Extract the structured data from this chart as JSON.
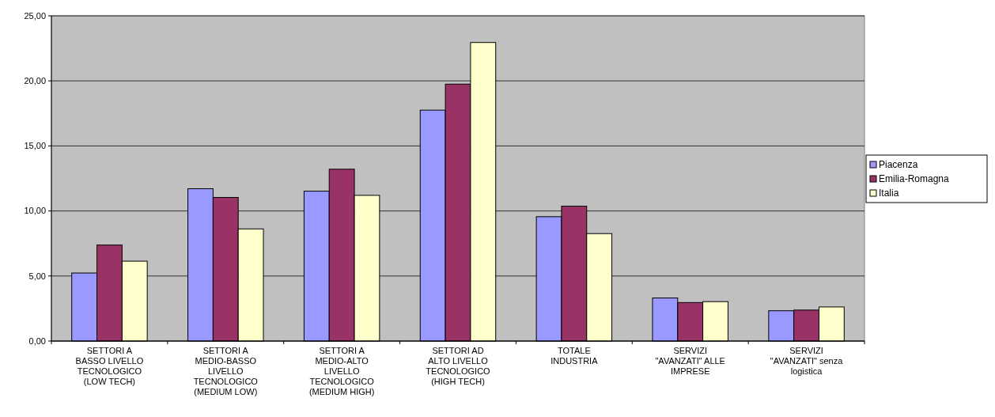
{
  "chart_data": {
    "type": "bar",
    "categories": [
      "SETTORI A BASSO LIVELLO TECNOLOGICO (LOW TECH)",
      "SETTORI A MEDIO-BASSO LIVELLO TECNOLOGICO (MEDIUM LOW)",
      "SETTORI A MEDIO-ALTO LIVELLO TECNOLOGICO (MEDIUM HIGH)",
      "SETTORI AD ALTO LIVELLO TECNOLOGICO (HIGH TECH)",
      "TOTALE INDUSTRIA",
      "SERVIZI \"AVANZATI\" ALLE IMPRESE",
      "SERVIZI \"AVANZATI\" senza logistica"
    ],
    "series": [
      {
        "name": "Piacenza",
        "color": "#9999ff",
        "values": [
          5.23,
          11.71,
          11.52,
          17.75,
          9.56,
          3.31,
          2.33
        ]
      },
      {
        "name": "Emilia-Romagna",
        "color": "#993366",
        "values": [
          7.38,
          11.04,
          13.21,
          19.75,
          10.37,
          2.96,
          2.38
        ]
      },
      {
        "name": "Italia",
        "color": "#ffffcc",
        "values": [
          6.14,
          8.62,
          11.2,
          22.95,
          8.26,
          3.03,
          2.62
        ]
      }
    ],
    "ylim": [
      0,
      25
    ],
    "yticks": [
      {
        "value": 0,
        "label": "0,00"
      },
      {
        "value": 5,
        "label": "5,00"
      },
      {
        "value": 10,
        "label": "10,00"
      },
      {
        "value": 15,
        "label": "15,00"
      },
      {
        "value": 20,
        "label": "20,00"
      },
      {
        "value": 25,
        "label": "25,00"
      }
    ],
    "grid": "y",
    "legend": "right"
  }
}
